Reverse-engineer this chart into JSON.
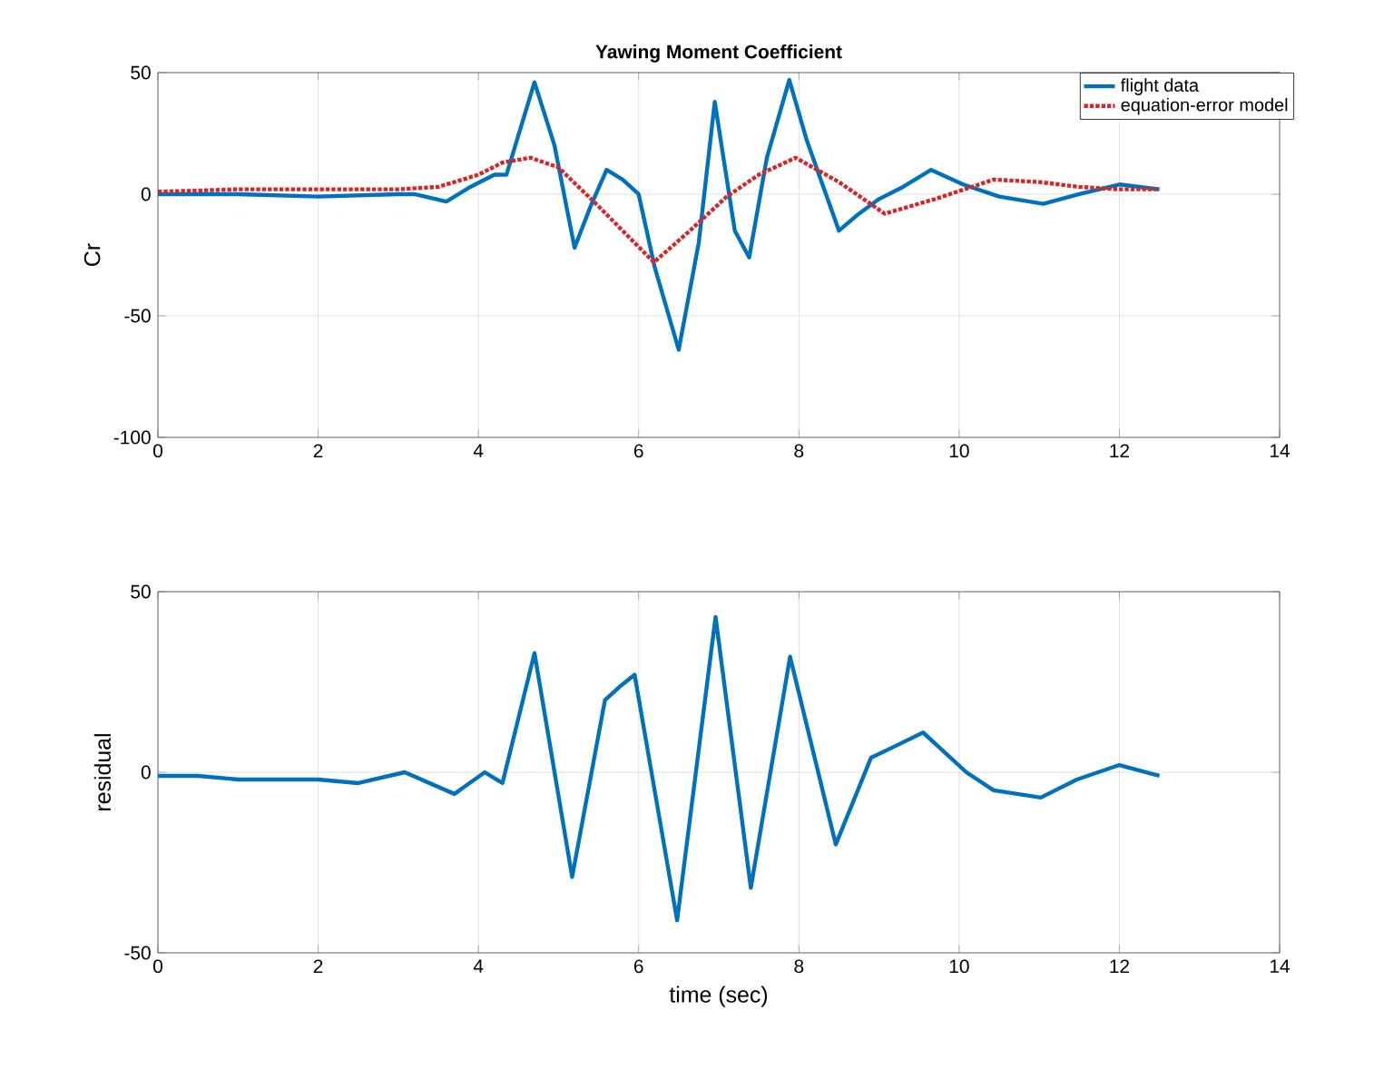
{
  "chart_data": [
    {
      "type": "line",
      "title": "Yawing Moment Coefficient",
      "ylabel": "Cr",
      "xlim": [
        0,
        14
      ],
      "xticks": [
        0,
        2,
        4,
        6,
        8,
        10,
        12,
        14
      ],
      "ylim": [
        -100,
        50
      ],
      "yticks": [
        -100,
        -50,
        0,
        50
      ],
      "grid": true,
      "legend": "top right",
      "series": [
        {
          "name": "flight data",
          "color": "#0072bd",
          "line_style": "solid",
          "x": [
            0,
            1,
            2,
            3,
            3.2,
            3.6,
            3.9,
            4.2,
            4.35,
            4.7,
            4.95,
            5.2,
            5.4,
            5.6,
            5.8,
            6.0,
            6.2,
            6.5,
            6.75,
            6.95,
            7.2,
            7.38,
            7.6,
            7.88,
            8.1,
            8.5,
            8.75,
            9.0,
            9.3,
            9.65,
            10.05,
            10.5,
            11.05,
            11.5,
            12.0,
            12.5
          ],
          "values": [
            0,
            0,
            -1,
            0,
            0,
            -3,
            3,
            8,
            8,
            46,
            20,
            -22,
            -5,
            10,
            6,
            0,
            -30,
            -64,
            -20,
            38,
            -15,
            -26,
            15,
            47,
            22,
            -15,
            -8,
            -2,
            3,
            10,
            4,
            -1,
            -4,
            0,
            4,
            2
          ]
        },
        {
          "name": "equation-error model",
          "color": "#d62728",
          "line_style": "dotted",
          "x": [
            0,
            1,
            2,
            3,
            3.5,
            4.0,
            4.3,
            4.65,
            5.0,
            5.5,
            6.19,
            6.64,
            7.1,
            7.5,
            7.96,
            8.5,
            9.07,
            9.7,
            10.43,
            11.0,
            11.5,
            12.0,
            12.47
          ],
          "values": [
            1,
            2,
            2,
            2,
            3,
            8,
            13,
            15,
            11,
            -5,
            -28,
            -15,
            -1,
            8,
            15,
            5,
            -8,
            -2,
            6,
            5,
            3,
            2,
            2
          ]
        }
      ]
    },
    {
      "type": "line",
      "xlabel": "time (sec)",
      "ylabel": "residual",
      "xlim": [
        0,
        14
      ],
      "xticks": [
        0,
        2,
        4,
        6,
        8,
        10,
        12,
        14
      ],
      "ylim": [
        -50,
        50
      ],
      "yticks": [
        -50,
        0,
        50
      ],
      "grid": true,
      "series": [
        {
          "color": "#0072bd",
          "line_style": "solid",
          "x": [
            0,
            0.5,
            1,
            1.5,
            2,
            2.5,
            3.08,
            3.7,
            4.08,
            4.3,
            4.7,
            5.17,
            5.58,
            5.78,
            5.95,
            6.48,
            6.96,
            7.4,
            7.89,
            8.46,
            8.9,
            9.18,
            9.55,
            10.09,
            10.43,
            11.02,
            11.47,
            12.0,
            12.5
          ],
          "values": [
            -1,
            -1,
            -2,
            -2,
            -2,
            -3,
            0,
            -6,
            0,
            -3,
            33,
            -29,
            20,
            24,
            27,
            -41,
            43,
            -32,
            32,
            -20,
            4,
            7,
            11,
            0,
            -5,
            -7,
            -2,
            2,
            -1
          ]
        }
      ]
    }
  ]
}
